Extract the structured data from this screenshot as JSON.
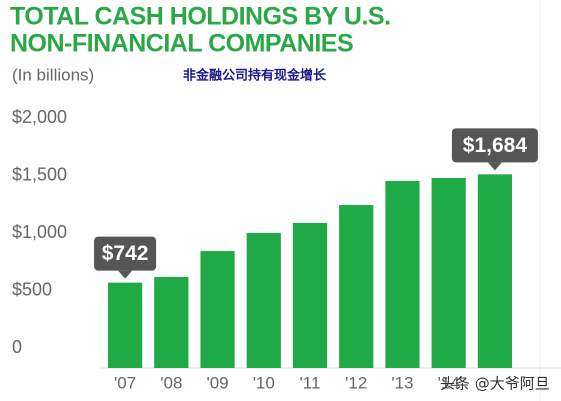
{
  "chart_data": {
    "type": "bar",
    "title": [
      "TOTAL CASH HOLDINGS BY U.S.",
      "NON-FINANCIAL COMPANIES"
    ],
    "subtitle": "(In billions)",
    "annotation": "非金融公司持有现金增长",
    "watermark": "头条 @大爷阿旦",
    "categories": [
      "'07",
      "'08",
      "'09",
      "'10",
      "'11",
      "'12",
      "'13",
      "'14",
      null
    ],
    "values": [
      742,
      791,
      1017,
      1174,
      1261,
      1417,
      1626,
      1652,
      1684
    ],
    "value_labels": [
      "$742",
      null,
      null,
      null,
      null,
      null,
      null,
      null,
      "$1,684"
    ],
    "color": "#1faa45",
    "ylim": [
      0,
      2000
    ],
    "yticks": [
      0,
      {
        "value": 500,
        "label": "$500"
      },
      {
        "value": 1000,
        "label": "$1,000"
      },
      {
        "value": 1500,
        "label": "$1,500"
      },
      {
        "value": 2000,
        "label": "$2,000"
      }
    ],
    "grid": false
  }
}
